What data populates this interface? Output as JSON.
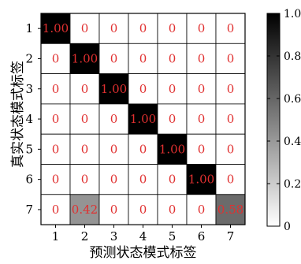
{
  "chart_data": {
    "type": "heatmap",
    "xlabel": "预测状态模式标签",
    "ylabel": "真实状态模式标签",
    "x_categories": [
      "1",
      "2",
      "3",
      "4",
      "5",
      "6",
      "7"
    ],
    "y_categories": [
      "1",
      "2",
      "3",
      "4",
      "5",
      "6",
      "7"
    ],
    "matrix": [
      [
        1.0,
        0,
        0,
        0,
        0,
        0,
        0
      ],
      [
        0,
        1.0,
        0,
        0,
        0,
        0,
        0
      ],
      [
        0,
        0,
        1.0,
        0,
        0,
        0,
        0
      ],
      [
        0,
        0,
        0,
        1.0,
        0,
        0,
        0
      ],
      [
        0,
        0,
        0,
        0,
        1.0,
        0,
        0
      ],
      [
        0,
        0,
        0,
        0,
        0,
        1.0,
        0
      ],
      [
        0,
        0.42,
        0,
        0,
        0,
        0,
        0.58
      ]
    ],
    "cell_labels": [
      [
        "1.00",
        "0",
        "0",
        "0",
        "0",
        "0",
        "0"
      ],
      [
        "0",
        "1.00",
        "0",
        "0",
        "0",
        "0",
        "0"
      ],
      [
        "0",
        "0",
        "1.00",
        "0",
        "0",
        "0",
        "0"
      ],
      [
        "0",
        "0",
        "0",
        "1.00",
        "0",
        "0",
        "0"
      ],
      [
        "0",
        "0",
        "0",
        "0",
        "1.00",
        "0",
        "0"
      ],
      [
        "0",
        "0",
        "0",
        "0",
        "0",
        "1.00",
        "0"
      ],
      [
        "0",
        "0.42",
        "0",
        "0",
        "0",
        "0",
        "0.58"
      ]
    ],
    "colorbar": {
      "range": [
        0,
        1.0
      ],
      "ticks": [
        0,
        0.2,
        0.4,
        0.6,
        0.8,
        1.0
      ],
      "tick_labels": [
        "0",
        "0.2",
        "0.4",
        "0.6",
        "0.8",
        "1.0"
      ],
      "colormap": "white-to-black"
    },
    "cell_text_color": "#e03030",
    "grid": true
  }
}
